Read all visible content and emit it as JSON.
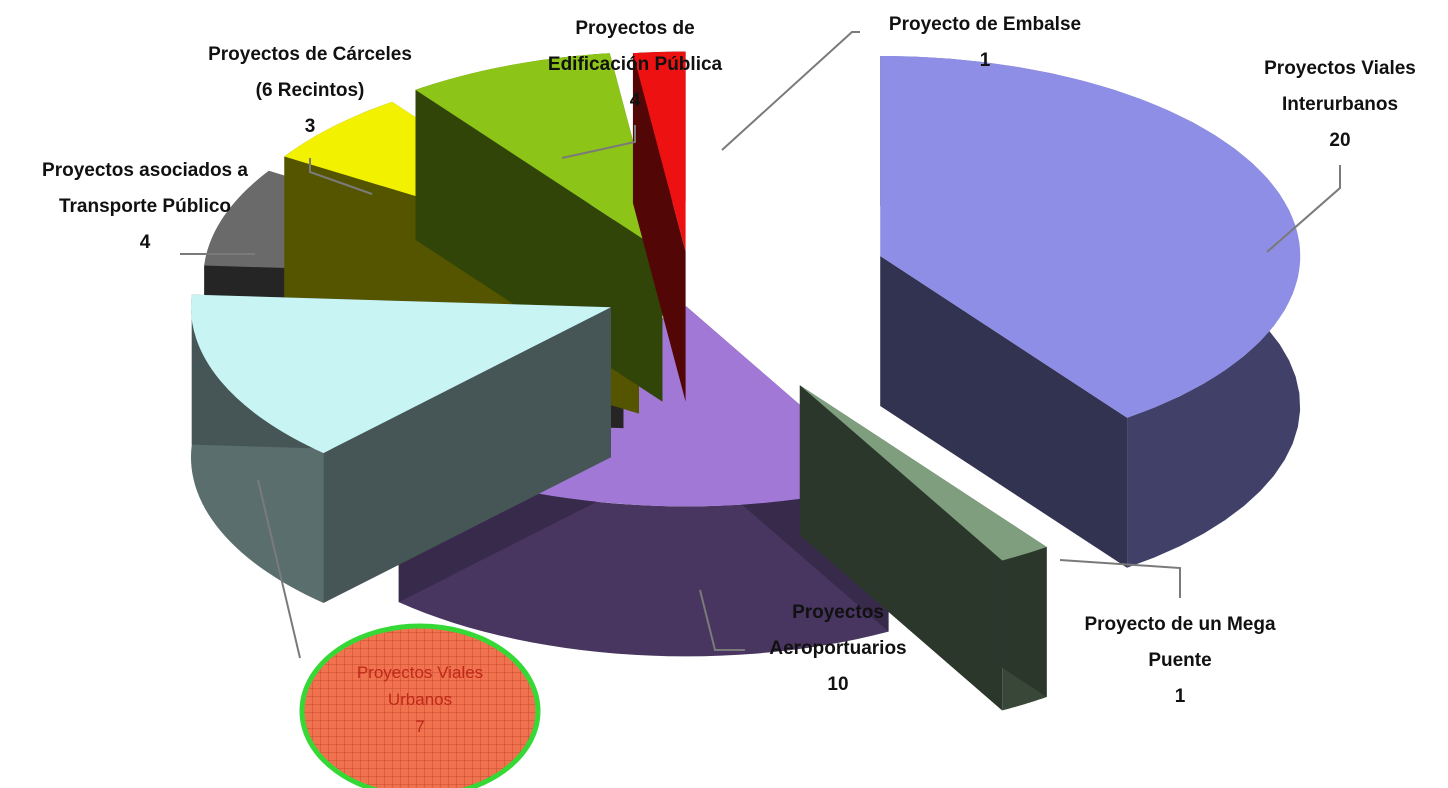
{
  "chart_data": {
    "type": "pie",
    "style": "3d-exploded",
    "slices": [
      {
        "label_lines": [
          "Proyectos Viales",
          "Interurbanos"
        ],
        "value": 20,
        "value_text": "20",
        "color": "#8e8ee6"
      },
      {
        "label_lines": [
          "Proyecto de un Mega",
          "Puente"
        ],
        "value": 1,
        "value_text": "1",
        "color": "#7e9e7e"
      },
      {
        "label_lines": [
          "Proyectos",
          "Aeroportuarios"
        ],
        "value": 10,
        "value_text": "10",
        "color": "#a178d6"
      },
      {
        "label_lines": [
          "Proyectos Viales",
          "Urbanos"
        ],
        "value": 7,
        "value_text": "7",
        "color": "#c8f4f4",
        "highlighted": true
      },
      {
        "label_lines": [
          "Proyectos asociados a",
          "Transporte Público"
        ],
        "value": 4,
        "value_text": "4",
        "color": "#6a6a6a"
      },
      {
        "label_lines": [
          "Proyectos de Cárceles",
          "(6 Recintos)"
        ],
        "value": 3,
        "value_text": "3",
        "color": "#f2f200"
      },
      {
        "label_lines": [
          "Proyectos de",
          "Edificación Pública"
        ],
        "value": 4,
        "value_text": "4",
        "color": "#8cc418"
      },
      {
        "label_lines": [
          "Proyecto de Embalse"
        ],
        "value": 1,
        "value_text": "1",
        "color": "#ee1111"
      }
    ],
    "highlight": {
      "fill": "#f0724e",
      "stroke": "#36d836"
    }
  }
}
